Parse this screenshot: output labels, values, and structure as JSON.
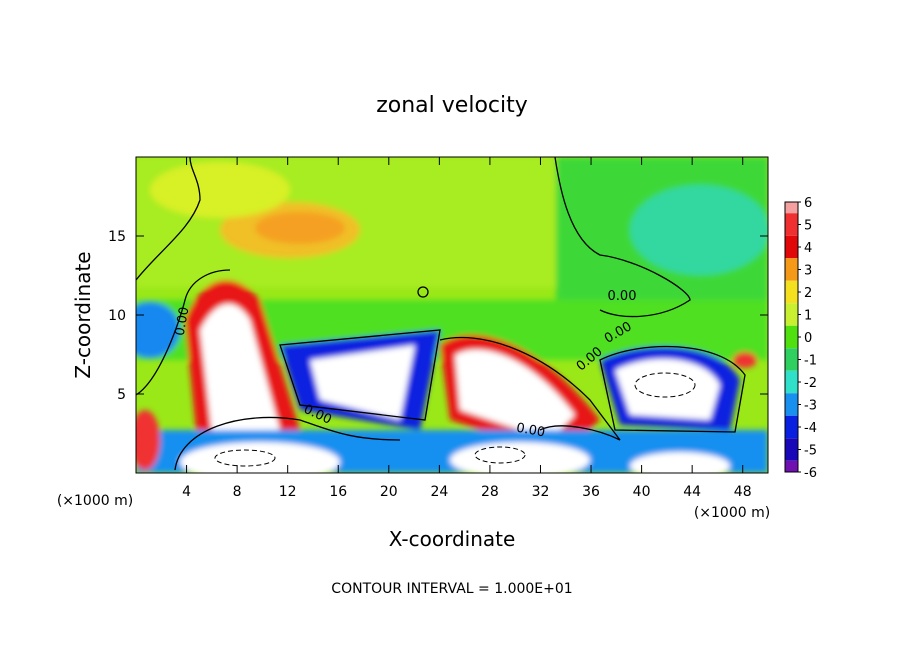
{
  "chart_data": {
    "type": "heatmap",
    "title": "zonal velocity",
    "xlabel": "X-coordinate",
    "ylabel": "Z-coordinate",
    "x_unit_left": "(×1000 m)",
    "x_unit_right": "(×1000 m)",
    "xlim": [
      0,
      50
    ],
    "ylim": [
      0,
      20
    ],
    "x_ticks": [
      4,
      8,
      12,
      16,
      20,
      24,
      28,
      32,
      36,
      40,
      44,
      48
    ],
    "y_ticks": [
      5,
      10,
      15
    ],
    "colorbar": {
      "levels": [
        6,
        5,
        4,
        3,
        2,
        1,
        0,
        -1,
        -2,
        -3,
        -4,
        -5,
        -6
      ],
      "colors": [
        "#f5a0a0",
        "#f03030",
        "#e00808",
        "#f59a18",
        "#f5e020",
        "#c8f030",
        "#50e010",
        "#30d060",
        "#30e0c8",
        "#1890f0",
        "#0a20e0",
        "#1808b8",
        "#7010b0"
      ]
    },
    "contour_labels": [
      "0.00",
      "0.00",
      "0.00",
      "0.00",
      "0.00",
      "0.00"
    ],
    "footer": "CONTOUR INTERVAL = 1.000E+01"
  }
}
